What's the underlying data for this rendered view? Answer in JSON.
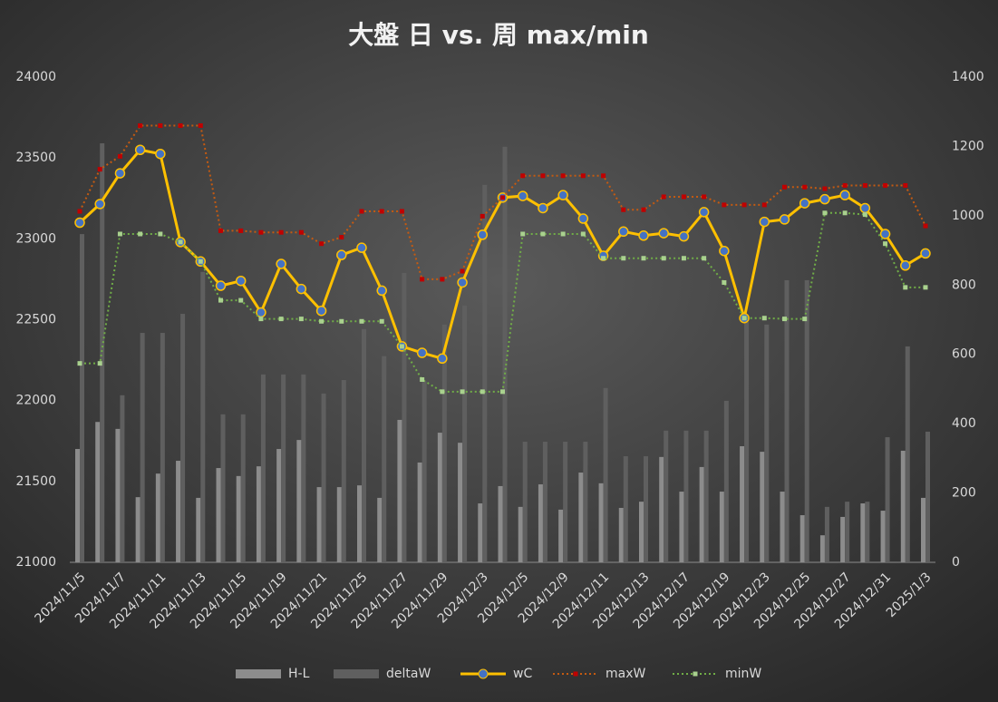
{
  "chart_data": {
    "type": "combo",
    "title": "大盤 日 vs. 周 max/min",
    "categories": [
      "2024/11/5",
      null,
      "2024/11/7",
      null,
      "2024/11/11",
      null,
      "2024/11/13",
      null,
      "2024/11/15",
      null,
      "2024/11/19",
      null,
      "2024/11/21",
      null,
      "2024/11/25",
      null,
      "2024/11/27",
      null,
      "2024/11/29",
      null,
      "2024/12/3",
      null,
      "2024/12/5",
      null,
      "2024/12/9",
      null,
      "2024/12/11",
      null,
      "2024/12/13",
      null,
      "2024/12/17",
      null,
      "2024/12/19",
      null,
      "2024/12/23",
      null,
      "2024/12/25",
      null,
      "2024/12/27",
      null,
      "2024/12/31",
      null,
      "2025/1/3"
    ],
    "series": [
      {
        "name": "H-L",
        "type": "bar",
        "axis": "y2",
        "color": "#8c8c8c",
        "values": [
          327,
          405,
          385,
          188,
          256,
          293,
          186,
          272,
          249,
          277,
          327,
          353,
          217,
          217,
          222,
          186,
          411,
          288,
          374,
          345,
          170,
          220,
          160,
          225,
          152,
          259,
          228,
          157,
          175,
          304,
          204,
          275,
          204,
          335,
          319,
          204,
          136,
          78,
          131,
          170,
          149,
          322,
          186
        ]
      },
      {
        "name": "deltaW",
        "type": "bar",
        "axis": "y2",
        "color": "#5f5f5f",
        "values": [
          947,
          1209,
          482,
          662,
          662,
          717,
          838,
          427,
          427,
          542,
          542,
          542,
          487,
          526,
          673,
          595,
          835,
          523,
          686,
          741,
          1089,
          1199,
          348,
          348,
          348,
          348,
          503,
          306,
          306,
          380,
          380,
          380,
          466,
          694,
          686,
          814,
          814,
          160,
          175,
          175,
          361,
          623,
          377
        ]
      },
      {
        "name": "wC",
        "type": "line",
        "color": "#ffc000",
        "marker": "#4472c4",
        "values": [
          23100,
          23215,
          23405,
          23550,
          23525,
          22980,
          22860,
          22710,
          22740,
          22545,
          22845,
          22690,
          22555,
          22900,
          22945,
          22680,
          22335,
          22295,
          22260,
          22730,
          23025,
          23255,
          23265,
          23190,
          23270,
          23125,
          22895,
          23045,
          23020,
          23035,
          23015,
          23165,
          22925,
          22510,
          23105,
          23120,
          23220,
          23245,
          23270,
          23190,
          23030,
          22835,
          22910
        ]
      },
      {
        "name": "maxW",
        "type": "dotted",
        "color": "#c55a11",
        "marker": "#c00000",
        "values": [
          23170,
          23430,
          23510,
          23700,
          23700,
          23700,
          23700,
          23050,
          23050,
          23040,
          23040,
          23040,
          22970,
          23010,
          23170,
          23170,
          23170,
          22750,
          22750,
          22800,
          23140,
          23255,
          23390,
          23390,
          23390,
          23390,
          23390,
          23180,
          23180,
          23260,
          23260,
          23260,
          23210,
          23210,
          23210,
          23320,
          23320,
          23310,
          23330,
          23330,
          23330,
          23330,
          23080
        ]
      },
      {
        "name": "minW",
        "type": "dotted",
        "color": "#70ad47",
        "marker": "#a9d18e",
        "values": [
          22230,
          22230,
          23030,
          23030,
          23030,
          22980,
          22860,
          22620,
          22620,
          22505,
          22505,
          22505,
          22490,
          22490,
          22490,
          22490,
          22335,
          22130,
          22055,
          22055,
          22055,
          22055,
          23030,
          23030,
          23030,
          23030,
          22880,
          22880,
          22880,
          22880,
          22880,
          22880,
          22730,
          22510,
          22510,
          22505,
          22505,
          23160,
          23160,
          23150,
          22970,
          22700,
          22700
        ]
      }
    ],
    "ylim": [
      21000,
      24000
    ],
    "yticks": [
      21000,
      21500,
      22000,
      22500,
      23000,
      23500,
      24000
    ],
    "y2lim": [
      0,
      1400
    ],
    "y2ticks": [
      0,
      200,
      400,
      600,
      800,
      1000,
      1200,
      1400
    ],
    "legend": "bottom"
  }
}
